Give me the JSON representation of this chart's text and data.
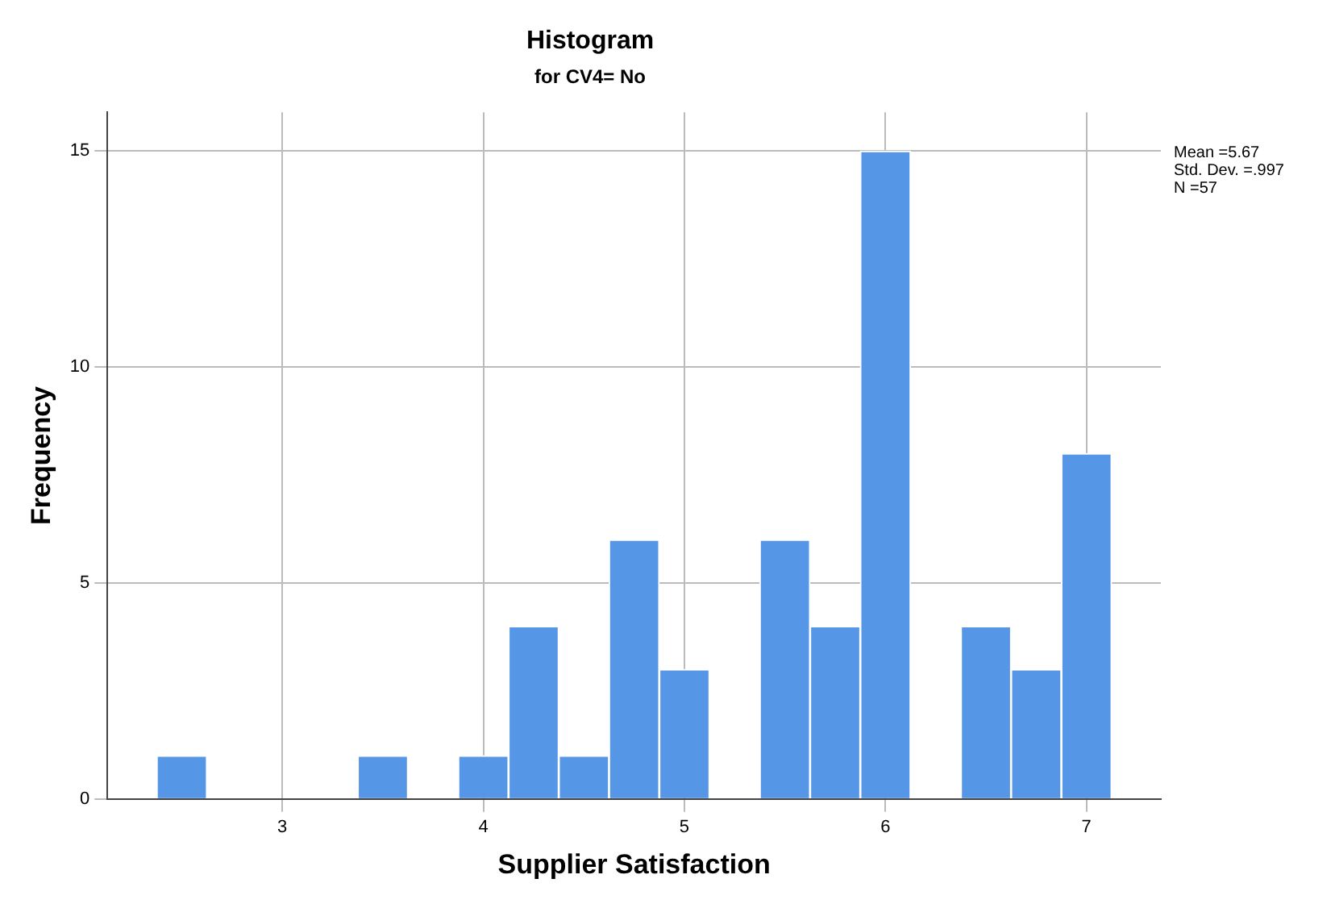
{
  "chart_data": {
    "type": "histogram",
    "title": "Histogram",
    "subtitle": "for CV4= No",
    "xlabel": "Supplier Satisfaction",
    "ylabel": "Frequency",
    "bins": [
      2.375,
      2.625,
      2.875,
      3.125,
      3.375,
      3.625,
      3.875,
      4.125,
      4.375,
      4.625,
      4.875,
      5.125,
      5.375,
      5.625,
      5.875,
      6.125,
      6.375,
      6.625,
      6.875,
      7.125
    ],
    "values": [
      1,
      0,
      0,
      0,
      1,
      0,
      1,
      4,
      1,
      6,
      3,
      0,
      6,
      4,
      15,
      0,
      4,
      3,
      8
    ],
    "color": "#5596e6",
    "xlim": [
      2.13,
      7.37
    ],
    "xticks": [
      3,
      4,
      5,
      6,
      7
    ],
    "ylim": [
      0,
      15.9
    ],
    "yticks": [
      0,
      5,
      10,
      15
    ],
    "grid": true,
    "annotations": [
      "Mean =5.67",
      "Std. Dev. =.997",
      "N =57"
    ]
  }
}
